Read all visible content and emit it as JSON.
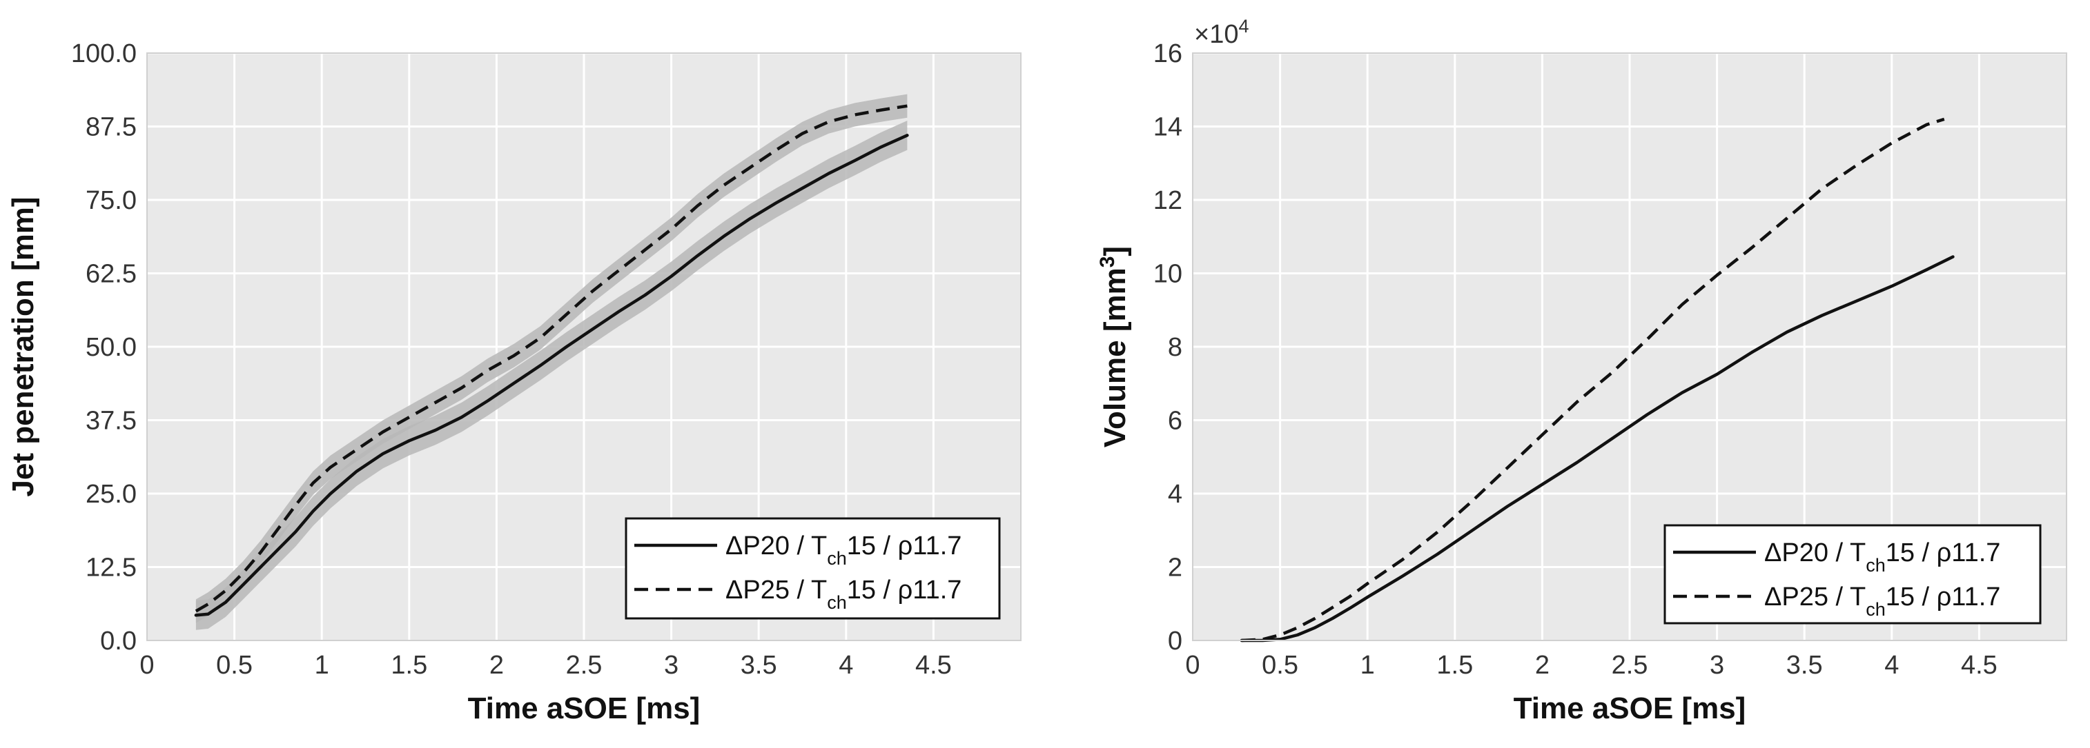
{
  "colors": {
    "plot_bg": "#e9e9e9",
    "grid": "#ffffff",
    "line": "#111111",
    "band": "#b7b7b7"
  },
  "chart_data": [
    {
      "type": "line",
      "xlabel": "Time aSOE [ms]",
      "ylabel": "Jet penetration [mm]",
      "xlim": [
        0,
        5
      ],
      "ylim": [
        0,
        100
      ],
      "xticks": [
        0,
        0.5,
        1,
        1.5,
        2,
        2.5,
        3,
        3.5,
        4,
        4.5
      ],
      "xtick_labels": [
        "0",
        "0.5",
        "1",
        "1.5",
        "2",
        "2.5",
        "3",
        "3.5",
        "4",
        "4.5"
      ],
      "yticks": [
        0,
        12.5,
        25,
        37.5,
        50,
        62.5,
        75,
        87.5,
        100
      ],
      "ytick_labels": [
        "0.0",
        "12.5",
        "25.0",
        "37.5",
        "50.0",
        "62.5",
        "75.0",
        "87.5",
        "100.0"
      ],
      "grid": true,
      "legend_position": "bottom-right",
      "series": [
        {
          "name": "ΔP20 / Tch15 / ρ11.7",
          "legend": {
            "pre": "ΔP20  / T",
            "sub": "ch",
            "post": "15 / ρ11.7"
          },
          "style": "solid",
          "band_halfwidth": 2.5,
          "x": [
            0.28,
            0.35,
            0.45,
            0.55,
            0.65,
            0.75,
            0.85,
            0.95,
            1.05,
            1.2,
            1.35,
            1.5,
            1.65,
            1.8,
            1.95,
            2.1,
            2.25,
            2.4,
            2.55,
            2.7,
            2.85,
            3.0,
            3.15,
            3.3,
            3.45,
            3.6,
            3.75,
            3.9,
            4.05,
            4.2,
            4.35
          ],
          "y": [
            4.3,
            4.5,
            6.5,
            9.5,
            12.5,
            15.5,
            18.5,
            22.0,
            25.0,
            28.8,
            31.8,
            34.0,
            35.8,
            38.0,
            40.8,
            43.8,
            46.8,
            50.0,
            53.0,
            56.0,
            58.8,
            62.0,
            65.5,
            68.8,
            71.8,
            74.5,
            77.0,
            79.5,
            81.7,
            84.0,
            86.0
          ]
        },
        {
          "name": "ΔP25 / Tch15 / ρ11.7",
          "legend": {
            "pre": "ΔP25  / T",
            "sub": "ch",
            "post": "15 / ρ11.7"
          },
          "style": "dashed",
          "band_halfwidth": 2.0,
          "x": [
            0.28,
            0.35,
            0.45,
            0.55,
            0.65,
            0.75,
            0.85,
            0.95,
            1.05,
            1.2,
            1.35,
            1.5,
            1.65,
            1.8,
            1.95,
            2.1,
            2.25,
            2.4,
            2.55,
            2.7,
            2.85,
            3.0,
            3.15,
            3.3,
            3.45,
            3.6,
            3.75,
            3.9,
            4.05,
            4.2,
            4.35
          ],
          "y": [
            5.0,
            6.2,
            8.5,
            11.5,
            15.0,
            19.0,
            23.0,
            26.8,
            29.5,
            32.5,
            35.5,
            38.0,
            40.5,
            43.0,
            46.0,
            48.5,
            51.5,
            55.5,
            59.5,
            63.0,
            66.5,
            70.0,
            74.0,
            77.5,
            80.5,
            83.5,
            86.3,
            88.3,
            89.5,
            90.3,
            91.0
          ]
        }
      ]
    },
    {
      "type": "line",
      "xlabel": "Time aSOE [ms]",
      "ylabel": "Volume [mm3]",
      "ylabel_parts": {
        "base": "Volume [mm",
        "sup": "3",
        "end": "]"
      },
      "xlim": [
        0,
        5
      ],
      "ylim": [
        0,
        160000
      ],
      "multiplier": {
        "base": "×10",
        "exp": "4"
      },
      "xticks": [
        0,
        0.5,
        1,
        1.5,
        2,
        2.5,
        3,
        3.5,
        4,
        4.5
      ],
      "xtick_labels": [
        "0",
        "0.5",
        "1",
        "1.5",
        "2",
        "2.5",
        "3",
        "3.5",
        "4",
        "4.5"
      ],
      "yticks": [
        0,
        20000,
        40000,
        60000,
        80000,
        100000,
        120000,
        140000,
        160000
      ],
      "ytick_labels": [
        "0",
        "2",
        "4",
        "6",
        "8",
        "10",
        "12",
        "14",
        "16"
      ],
      "grid": true,
      "legend_position": "bottom-right",
      "series": [
        {
          "name": "ΔP20 / Tch15 / ρ11.7",
          "legend": {
            "pre": "ΔP20  / T",
            "sub": "ch",
            "post": "15 / ρ11.7"
          },
          "style": "solid",
          "x": [
            0.28,
            0.4,
            0.5,
            0.6,
            0.7,
            0.8,
            0.9,
            1.0,
            1.2,
            1.4,
            1.6,
            1.8,
            2.0,
            2.2,
            2.4,
            2.6,
            2.8,
            3.0,
            3.2,
            3.4,
            3.6,
            3.8,
            4.0,
            4.2,
            4.35
          ],
          "y": [
            0,
            0,
            300,
            1500,
            3500,
            6000,
            8800,
            11800,
            17500,
            23500,
            30000,
            36500,
            42500,
            48500,
            55000,
            61500,
            67500,
            72500,
            78500,
            84000,
            88500,
            92500,
            96500,
            101000,
            104500
          ]
        },
        {
          "name": "ΔP25 / Tch15 / ρ11.7",
          "legend": {
            "pre": "ΔP25  / T",
            "sub": "ch",
            "post": "15 / ρ11.7"
          },
          "style": "dashed",
          "x": [
            0.28,
            0.4,
            0.5,
            0.6,
            0.7,
            0.8,
            0.9,
            1.0,
            1.2,
            1.4,
            1.6,
            1.8,
            2.0,
            2.2,
            2.4,
            2.6,
            2.8,
            3.0,
            3.2,
            3.4,
            3.6,
            3.8,
            4.0,
            4.2,
            4.3
          ],
          "y": [
            0,
            300,
            1500,
            3500,
            6000,
            9000,
            12000,
            15500,
            22000,
            29500,
            38000,
            47000,
            56000,
            65000,
            73000,
            82000,
            91500,
            99500,
            107000,
            115000,
            123000,
            129500,
            135500,
            140500,
            142000
          ]
        }
      ]
    }
  ]
}
